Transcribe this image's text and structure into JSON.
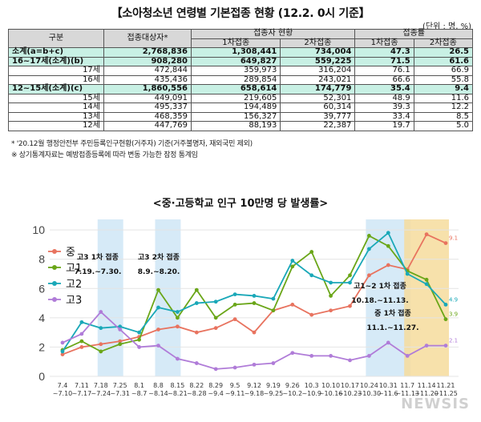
{
  "table": {
    "title": "【소아청소년 연령별 기본접종 현황 (12.2. 0시 기준】",
    "unit": "(단위 : 명, %)",
    "headers": {
      "group": "구분",
      "target": "접종대상자*",
      "vacc": "접종자 현황",
      "rate": "접종률",
      "dose1": "1차접종",
      "dose2": "2차접종",
      "rate1": "1차접종",
      "rate2": "2차접종"
    },
    "rows": [
      {
        "label": "소계(a=b+c)",
        "target": "2,768,836",
        "d1": "1,308,441",
        "d2": "734,004",
        "r1": "47.3",
        "r2": "26.5"
      },
      {
        "label": "16~17세(소계)(b)",
        "target": "908,280",
        "d1": "649,827",
        "d2": "559,225",
        "r1": "71.5",
        "r2": "61.6"
      },
      {
        "label": "17세",
        "target": "472,844",
        "d1": "359,973",
        "d2": "316,204",
        "r1": "76.1",
        "r2": "66.9"
      },
      {
        "label": "16세",
        "target": "435,436",
        "d1": "289,854",
        "d2": "243,021",
        "r1": "66.6",
        "r2": "55.8"
      },
      {
        "label": "12~15세(소계)(c)",
        "target": "1,860,556",
        "d1": "658,614",
        "d2": "174,779",
        "r1": "35.4",
        "r2": "9.4"
      },
      {
        "label": "15세",
        "target": "449,091",
        "d1": "219,605",
        "d2": "52,301",
        "r1": "48.9",
        "r2": "11.6"
      },
      {
        "label": "14세",
        "target": "495,337",
        "d1": "194,489",
        "d2": "60,314",
        "r1": "39.3",
        "r2": "12.2"
      },
      {
        "label": "13세",
        "target": "468,359",
        "d1": "156,327",
        "d2": "39,777",
        "r1": "33.4",
        "r2": "8.5"
      },
      {
        "label": "12세",
        "target": "447,769",
        "d1": "88,193",
        "d2": "22,387",
        "r1": "19.7",
        "r2": "5.0"
      }
    ],
    "footnote1": "* '20.12월 행정안전부 주민등록인구현황(거주자) 기준(거주불명자, 재외국민 제외)",
    "footnote2": "※ 상기통계자료는 예방접종등록에 따라 변동 가능한 잠정 통계임"
  },
  "chart_data": {
    "type": "line",
    "title": "<중·고등학교 인구 10만명 당 발생률>",
    "categories": [
      "7.4\n~7.10",
      "7.11\n~7.17",
      "7.18\n~7.24",
      "7.25\n~7.31",
      "8.1\n~8.7",
      "8.8\n~8.14",
      "8.15\n~8.21",
      "8.22\n~8.28",
      "8.29\n~9.4",
      "9.5\n~9.11",
      "9.12\n~9.18",
      "9.19\n~9.25",
      "9.26\n~10.2",
      "10.3\n~10.9",
      "10.10\n~10.16",
      "10.17\n~10.23",
      "10.24\n~10.30",
      "10.31\n~11.6",
      "11.7\n~11.13",
      "11.14\n~11.20",
      "11.21\n~11.25"
    ],
    "ylim": [
      0,
      10.5
    ],
    "yticks": [
      0,
      2,
      4,
      6,
      8,
      10
    ],
    "series": [
      {
        "name": "중",
        "color": "#e8735f",
        "values": [
          1.5,
          2.0,
          2.2,
          2.4,
          2.7,
          3.2,
          3.4,
          3.0,
          3.3,
          3.9,
          3.0,
          4.5,
          4.9,
          4.2,
          4.5,
          4.8,
          6.9,
          7.6,
          7.3,
          9.7,
          9.1
        ]
      },
      {
        "name": "고1",
        "color": "#6aa618",
        "values": [
          1.8,
          2.4,
          1.7,
          2.2,
          2.5,
          5.9,
          4.0,
          5.9,
          4.0,
          4.9,
          5.0,
          4.5,
          7.5,
          8.5,
          5.5,
          6.9,
          9.6,
          8.9,
          7.2,
          6.6,
          3.9
        ]
      },
      {
        "name": "고2",
        "color": "#1aa8b8",
        "values": [
          1.7,
          3.7,
          3.3,
          3.4,
          3.0,
          4.7,
          4.4,
          5.0,
          5.1,
          5.6,
          5.5,
          5.3,
          7.9,
          6.9,
          6.4,
          6.4,
          8.7,
          9.8,
          7.0,
          6.3,
          4.9
        ]
      },
      {
        "name": "고3",
        "color": "#b07cd8",
        "values": [
          2.3,
          2.9,
          4.4,
          3.2,
          2.0,
          2.1,
          1.2,
          0.9,
          0.5,
          0.6,
          0.8,
          0.9,
          1.6,
          1.4,
          1.4,
          1.1,
          1.4,
          2.3,
          1.4,
          2.1,
          2.1
        ]
      }
    ],
    "end_labels": [
      "9.1",
      "3.9",
      "4.9",
      "2.1"
    ],
    "annotations": [
      {
        "title": "고3 1차 접종",
        "period": "7.19.~7.30."
      },
      {
        "title": "고3 2차 접종",
        "period": "8.9.~8.20."
      },
      {
        "title": "고1~2 1차 접종",
        "period": "10.18.~11.13."
      },
      {
        "title": "중 1차 접종",
        "period": "11.1.~11.27."
      }
    ],
    "shaded_bands": [
      {
        "from": 2,
        "to": 3,
        "color": "#cfe6f6"
      },
      {
        "from": 5,
        "to": 6,
        "color": "#cfe6f6"
      },
      {
        "from": 16,
        "to": 18,
        "color": "#cfe6f6"
      },
      {
        "from": 18,
        "to": 20,
        "color": "#f6dc9c"
      }
    ]
  },
  "watermark": "NEWSIS"
}
